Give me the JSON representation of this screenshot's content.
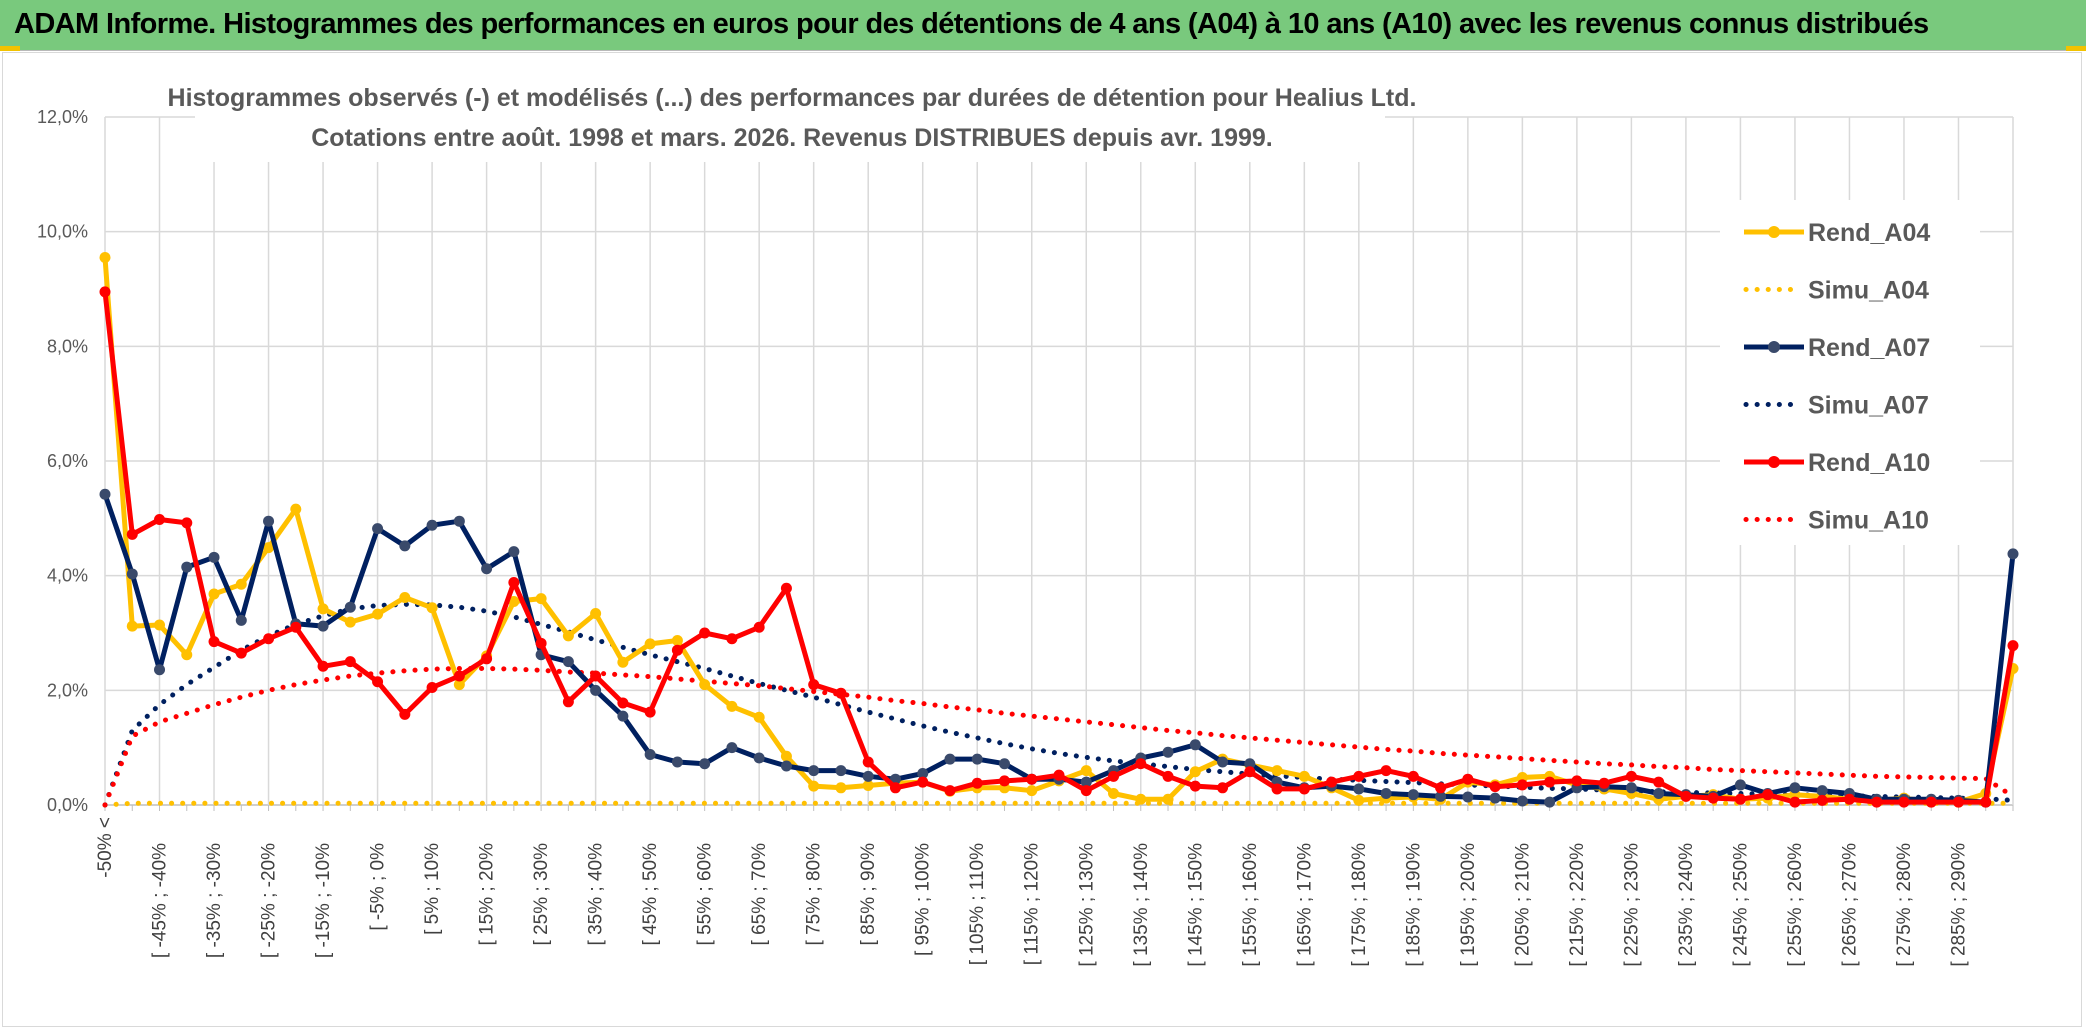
{
  "header": {
    "title": "ADAM Informe. Histogrammes des performances en euros pour des détentions de 4 ans (A04) à 10 ans (A10) avec les revenus connus distribués"
  },
  "chart_data": {
    "type": "line",
    "title": "Histogrammes observés (-) et modélisés (...) des performances par durées de détention pour Healius Ltd.",
    "subtitle": "Cotations entre août. 1998 et mars. 2026. Revenus DISTRIBUES depuis avr. 1999.",
    "xlabel": "",
    "ylabel": "",
    "ylim": [
      0,
      12
    ],
    "y_ticks": [
      "0,0%",
      "2,0%",
      "4,0%",
      "6,0%",
      "8,0%",
      "10,0%",
      "12,0%"
    ],
    "grid": true,
    "legend_position": "right",
    "x_tick_labels": [
      "-50% <",
      "[ -45% ; -40%",
      "[ -35% ; -30%",
      "[ -25% ; -20%",
      "[ -15% ; -10%",
      "[ -5% ; 0%",
      "[ 5% ; 10%",
      "[ 15% ; 20%",
      "[ 25% ; 30%",
      "[ 35% ; 40%",
      "[ 45% ; 50%",
      "[ 55% ; 60%",
      "[ 65% ; 70%",
      "[ 75% ; 80%",
      "[ 85% ; 90%",
      "[ 95% ; 100%",
      "[ 105% ; 110%",
      "[ 115% ; 120%",
      "[ 125% ; 130%",
      "[ 135% ; 140%",
      "[ 145% ; 150%",
      "[ 155% ; 160%",
      "[ 165% ; 170%",
      "[ 175% ; 180%",
      "[ 185% ; 190%",
      "[ 195% ; 200%",
      "[ 205% ; 210%",
      "[ 215% ; 220%",
      "[ 225% ; 230%",
      "[ 235% ; 240%",
      "[ 245% ; 250%",
      "[ 255% ; 260%",
      "[ 265% ; 270%",
      "[ 275% ; 280%",
      "[ 285% ; 290%"
    ],
    "n_categories": 71,
    "series": [
      {
        "name": "Rend_A04",
        "style": "solid",
        "color": "#ffc000",
        "values": [
          9.55,
          3.12,
          3.14,
          2.62,
          3.68,
          3.85,
          4.49,
          5.16,
          3.42,
          3.19,
          3.33,
          3.62,
          3.44,
          2.1,
          2.6,
          3.55,
          3.6,
          2.95,
          3.34,
          2.49,
          2.81,
          2.87,
          2.1,
          1.72,
          1.53,
          0.85,
          0.33,
          0.3,
          0.34,
          0.38,
          0.4,
          0.24,
          0.3,
          0.3,
          0.25,
          0.42,
          0.6,
          0.2,
          0.1,
          0.1,
          0.58,
          0.8,
          0.7,
          0.6,
          0.5,
          0.3,
          0.08,
          0.12,
          0.14,
          0.1,
          0.4,
          0.35,
          0.48,
          0.5,
          0.35,
          0.28,
          0.2,
          0.1,
          0.15,
          0.18,
          0.1,
          0.12,
          0.18,
          0.15,
          0.1,
          0.08,
          0.12,
          0.05,
          0.05,
          0.2,
          2.38
        ]
      },
      {
        "name": "Simu_A04",
        "style": "dotted",
        "color": "#ffc000",
        "values": [
          0,
          0.03,
          0.03,
          0.03,
          0.03,
          0.03,
          0.03,
          0.03,
          0.03,
          0.03,
          0.03,
          0.03,
          0.03,
          0.03,
          0.03,
          0.03,
          0.03,
          0.03,
          0.03,
          0.03,
          0.03,
          0.03,
          0.03,
          0.03,
          0.03,
          0.03,
          0.03,
          0.03,
          0.03,
          0.03,
          0.03,
          0.03,
          0.03,
          0.03,
          0.03,
          0.03,
          0.03,
          0.03,
          0.03,
          0.03,
          0.03,
          0.03,
          0.03,
          0.03,
          0.03,
          0.03,
          0.03,
          0.03,
          0.03,
          0.03,
          0.03,
          0.03,
          0.03,
          0.03,
          0.03,
          0.03,
          0.03,
          0.03,
          0.03,
          0.03,
          0.03,
          0.03,
          0.03,
          0.03,
          0.03,
          0.03,
          0.03,
          0.03,
          0.03,
          0.03,
          0.03
        ]
      },
      {
        "name": "Rend_A07",
        "style": "solid",
        "color": "#002060",
        "values": [
          5.42,
          4.03,
          2.36,
          4.15,
          4.32,
          3.22,
          4.95,
          3.16,
          3.12,
          3.45,
          4.82,
          4.52,
          4.88,
          4.95,
          4.12,
          4.42,
          2.62,
          2.5,
          2.0,
          1.55,
          0.88,
          0.75,
          0.72,
          1.0,
          0.82,
          0.68,
          0.6,
          0.6,
          0.5,
          0.45,
          0.55,
          0.8,
          0.8,
          0.72,
          0.45,
          0.45,
          0.4,
          0.6,
          0.82,
          0.92,
          1.05,
          0.75,
          0.72,
          0.4,
          0.3,
          0.33,
          0.28,
          0.2,
          0.18,
          0.15,
          0.14,
          0.12,
          0.07,
          0.05,
          0.3,
          0.32,
          0.3,
          0.2,
          0.18,
          0.15,
          0.35,
          0.2,
          0.3,
          0.25,
          0.2,
          0.1,
          0.1,
          0.1,
          0.08,
          0.05,
          4.38
        ]
      },
      {
        "name": "Simu_A07",
        "style": "dotted",
        "color": "#002060",
        "values": [
          0,
          1.3,
          1.75,
          2.1,
          2.4,
          2.7,
          2.95,
          3.15,
          3.3,
          3.42,
          3.48,
          3.5,
          3.49,
          3.45,
          3.38,
          3.28,
          3.15,
          3.02,
          2.88,
          2.75,
          2.62,
          2.5,
          2.38,
          2.25,
          2.12,
          2.0,
          1.88,
          1.75,
          1.62,
          1.5,
          1.38,
          1.27,
          1.17,
          1.07,
          0.98,
          0.9,
          0.83,
          0.77,
          0.72,
          0.67,
          0.62,
          0.58,
          0.54,
          0.51,
          0.48,
          0.45,
          0.43,
          0.41,
          0.39,
          0.37,
          0.35,
          0.33,
          0.31,
          0.29,
          0.28,
          0.26,
          0.25,
          0.23,
          0.22,
          0.21,
          0.2,
          0.19,
          0.18,
          0.17,
          0.16,
          0.15,
          0.14,
          0.13,
          0.12,
          0.11,
          0.08
        ]
      },
      {
        "name": "Rend_A10",
        "style": "solid",
        "color": "#ff0000",
        "values": [
          8.95,
          4.72,
          4.98,
          4.92,
          2.85,
          2.65,
          2.9,
          3.1,
          2.42,
          2.5,
          2.15,
          1.58,
          2.05,
          2.25,
          2.55,
          3.88,
          2.82,
          1.8,
          2.25,
          1.78,
          1.62,
          2.7,
          3.0,
          2.9,
          3.1,
          3.78,
          2.1,
          1.95,
          0.75,
          0.3,
          0.4,
          0.25,
          0.38,
          0.42,
          0.45,
          0.52,
          0.25,
          0.5,
          0.72,
          0.5,
          0.33,
          0.3,
          0.58,
          0.28,
          0.28,
          0.4,
          0.5,
          0.6,
          0.5,
          0.3,
          0.45,
          0.32,
          0.35,
          0.4,
          0.42,
          0.38,
          0.5,
          0.4,
          0.15,
          0.12,
          0.1,
          0.18,
          0.05,
          0.08,
          0.1,
          0.05,
          0.05,
          0.05,
          0.05,
          0.05,
          2.78
        ]
      },
      {
        "name": "Simu_A10",
        "style": "dotted",
        "color": "#ff0000",
        "values": [
          0,
          1.2,
          1.45,
          1.6,
          1.75,
          1.88,
          2.0,
          2.1,
          2.18,
          2.25,
          2.3,
          2.34,
          2.37,
          2.38,
          2.38,
          2.37,
          2.35,
          2.32,
          2.3,
          2.27,
          2.24,
          2.2,
          2.16,
          2.12,
          2.08,
          2.03,
          1.98,
          1.93,
          1.88,
          1.82,
          1.77,
          1.71,
          1.66,
          1.6,
          1.55,
          1.5,
          1.45,
          1.4,
          1.35,
          1.3,
          1.26,
          1.21,
          1.17,
          1.13,
          1.09,
          1.05,
          1.01,
          0.97,
          0.94,
          0.9,
          0.87,
          0.84,
          0.81,
          0.78,
          0.75,
          0.72,
          0.7,
          0.67,
          0.65,
          0.62,
          0.6,
          0.58,
          0.56,
          0.54,
          0.52,
          0.5,
          0.49,
          0.48,
          0.47,
          0.46,
          0.15
        ]
      }
    ]
  }
}
